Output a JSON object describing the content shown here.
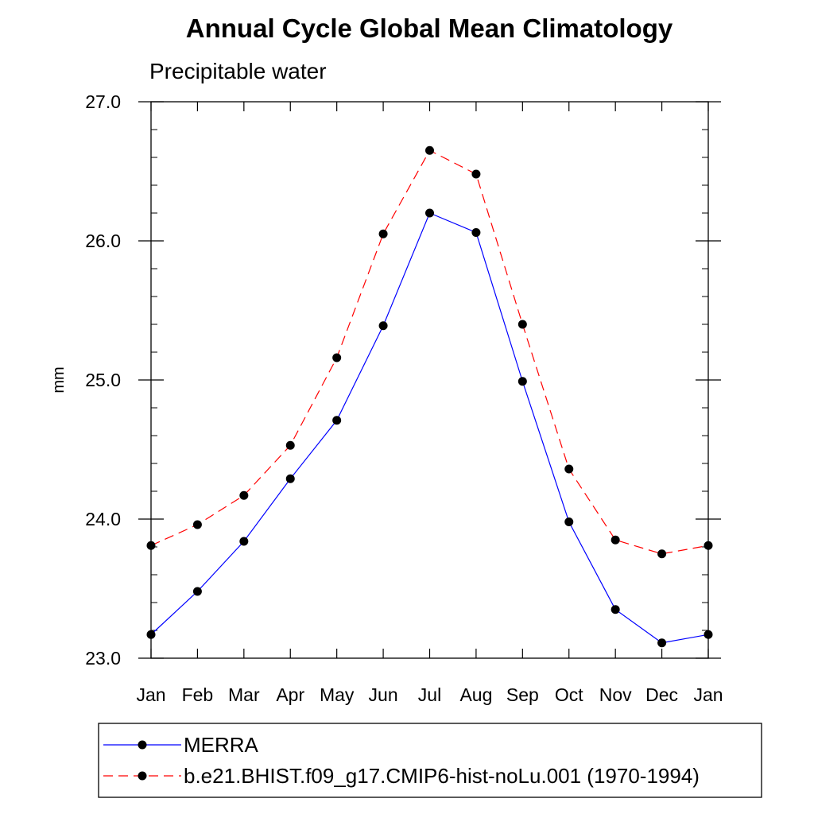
{
  "chart_data": {
    "type": "line",
    "title": "Annual Cycle Global Mean Climatology",
    "subtitle": "Precipitable water",
    "ylabel": "mm",
    "xlabel": "",
    "ylim": [
      23.0,
      27.0
    ],
    "y_ticks": [
      23.0,
      24.0,
      25.0,
      26.0,
      27.0
    ],
    "y_tick_labels": [
      "23.0",
      "24.0",
      "25.0",
      "26.0",
      "27.0"
    ],
    "categories": [
      "Jan",
      "Feb",
      "Mar",
      "Apr",
      "May",
      "Jun",
      "Jul",
      "Aug",
      "Sep",
      "Oct",
      "Nov",
      "Dec",
      "Jan"
    ],
    "series": [
      {
        "name": "MERRA",
        "color": "#0000ff",
        "dash": "solid",
        "marker": "filled-circle",
        "values": [
          23.17,
          23.48,
          23.84,
          24.29,
          24.71,
          25.39,
          26.2,
          26.06,
          24.99,
          23.98,
          23.35,
          23.11,
          23.17
        ]
      },
      {
        "name": "b.e21.BHIST.f09_g17.CMIP6-hist-noLu.001 (1970-1994)",
        "color": "#ff0000",
        "dash": "dashed",
        "marker": "filled-circle",
        "values": [
          23.81,
          23.96,
          24.17,
          24.53,
          25.16,
          26.05,
          26.65,
          26.48,
          25.4,
          24.36,
          23.85,
          23.75,
          23.81
        ]
      }
    ],
    "grid": false,
    "legend_position": "bottom"
  }
}
